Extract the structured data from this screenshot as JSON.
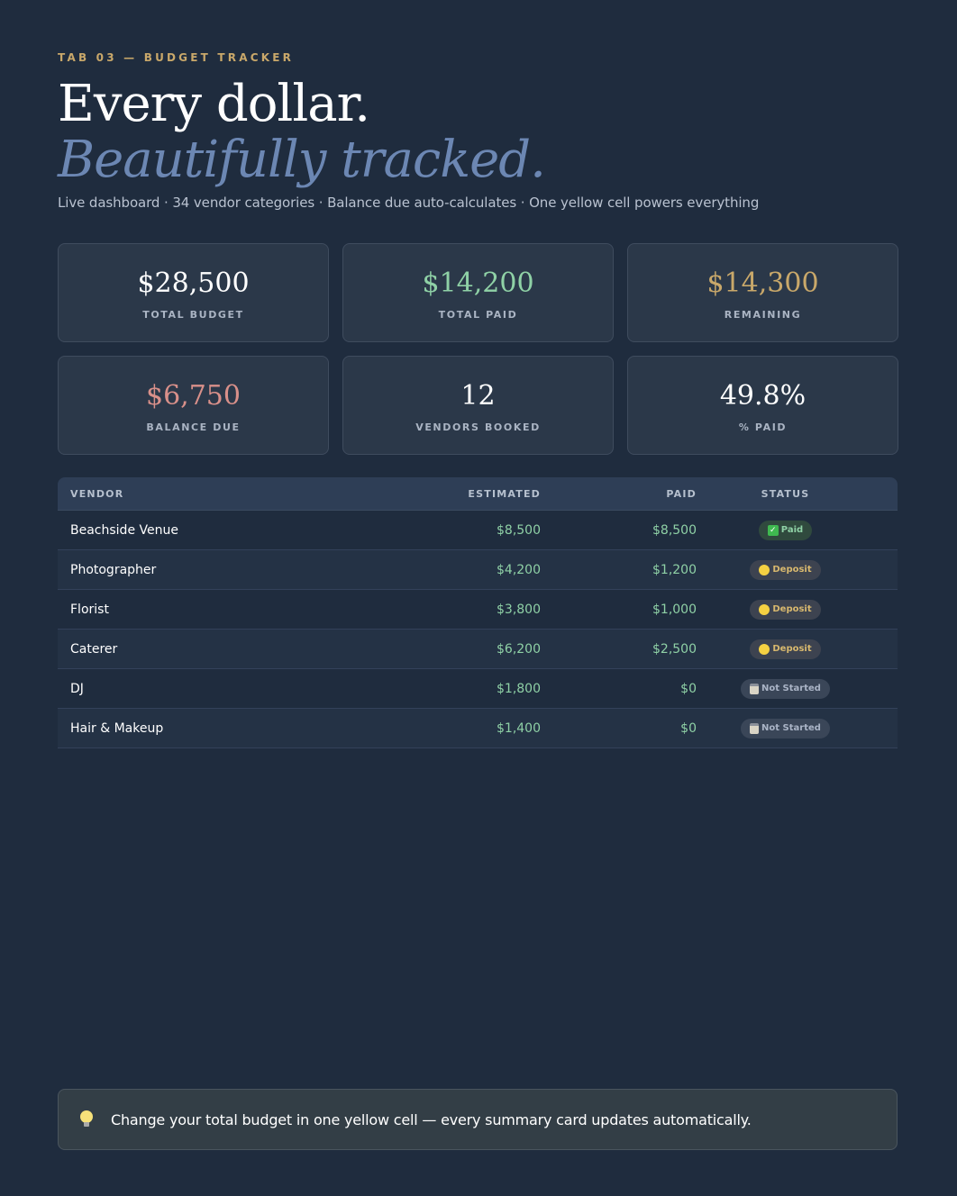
{
  "header": {
    "eyebrow": "TAB 03 — BUDGET TRACKER",
    "title_line1": "Every dollar.",
    "title_line2": "Beautifully tracked.",
    "subtitle": "Live dashboard · 34 vendor categories · Balance due auto-calculates · One yellow cell powers everything"
  },
  "cards": [
    {
      "value": "$28,500",
      "label": "TOTAL BUDGET",
      "color": "#ffffff"
    },
    {
      "value": "$14,200",
      "label": "TOTAL PAID",
      "color": "#8fd1a6"
    },
    {
      "value": "$14,300",
      "label": "REMAINING",
      "color": "#c9a86a"
    },
    {
      "value": "$6,750",
      "label": "BALANCE DUE",
      "color": "#d9908a"
    },
    {
      "value": "12",
      "label": "VENDORS BOOKED",
      "color": "#ffffff"
    },
    {
      "value": "49.8%",
      "label": "% PAID",
      "color": "#ffffff"
    }
  ],
  "table": {
    "headers": {
      "vendor": "VENDOR",
      "estimated": "ESTIMATED",
      "paid": "PAID",
      "status": "STATUS"
    },
    "rows": [
      {
        "vendor": "Beachside Venue",
        "estimated": "$8,500",
        "paid": "$8,500",
        "status": "Paid",
        "status_type": "paid"
      },
      {
        "vendor": "Photographer",
        "estimated": "$4,200",
        "paid": "$1,200",
        "status": "Deposit",
        "status_type": "deposit"
      },
      {
        "vendor": "Florist",
        "estimated": "$3,800",
        "paid": "$1,000",
        "status": "Deposit",
        "status_type": "deposit"
      },
      {
        "vendor": "Caterer",
        "estimated": "$6,200",
        "paid": "$2,500",
        "status": "Deposit",
        "status_type": "deposit"
      },
      {
        "vendor": "DJ",
        "estimated": "$1,800",
        "paid": "$0",
        "status": "Not Started",
        "status_type": "notstarted"
      },
      {
        "vendor": "Hair & Makeup",
        "estimated": "$1,400",
        "paid": "$0",
        "status": "Not Started",
        "status_type": "notstarted"
      }
    ]
  },
  "note": {
    "icon": "lightbulb-icon",
    "text": "Change your total budget in one yellow cell — every summary card updates automatically."
  }
}
